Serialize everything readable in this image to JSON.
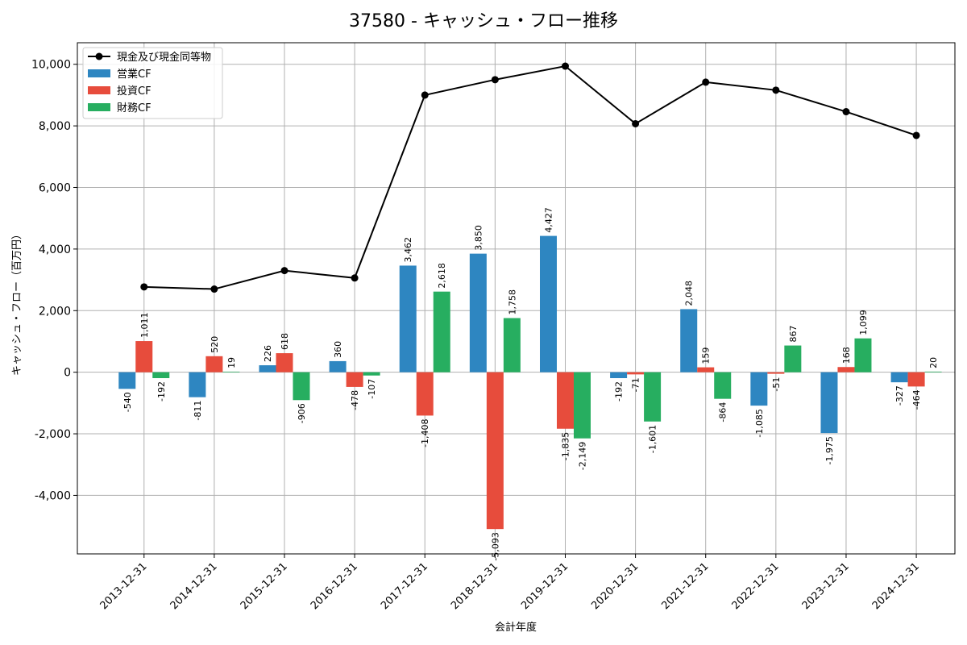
{
  "chart_data": {
    "type": "bar",
    "title": "37580 - キャッシュ・フロー推移",
    "xlabel": "会計年度",
    "ylabel": "キャッシュ・フロー（百万円）",
    "ylim": [
      -5900,
      10700
    ],
    "yticks": [
      -4000,
      -2000,
      0,
      2000,
      4000,
      6000,
      8000,
      10000
    ],
    "ytick_labels": [
      "-4,000",
      "-2,000",
      "0",
      "2,000",
      "4,000",
      "6,000",
      "8,000",
      "10,000"
    ],
    "grid": true,
    "legend_position": "top-left",
    "categories": [
      "2013-12-31",
      "2014-12-31",
      "2015-12-31",
      "2016-12-31",
      "2017-12-31",
      "2018-12-31",
      "2019-12-31",
      "2020-12-31",
      "2021-12-31",
      "2022-12-31",
      "2023-12-31",
      "2024-12-31"
    ],
    "series": [
      {
        "name": "営業CF",
        "kind": "bar",
        "color": "#2e86c1",
        "values": [
          -540,
          -811,
          226,
          360,
          3462,
          3850,
          4427,
          -192,
          2048,
          -1085,
          -1975,
          -327
        ],
        "labels": [
          "-540",
          "-811",
          "226",
          "360",
          "3,462",
          "3,850",
          "4,427",
          "-192",
          "2,048",
          "-1,085",
          "-1,975",
          "-327"
        ]
      },
      {
        "name": "投資CF",
        "kind": "bar",
        "color": "#e74c3c",
        "values": [
          1011,
          520,
          618,
          -478,
          -1408,
          -5093,
          -1835,
          -71,
          159,
          -51,
          168,
          -464
        ],
        "labels": [
          "1,011",
          "520",
          "618",
          "-478",
          "-1,408",
          "-5,093",
          "-1,835",
          "-71",
          "159",
          "-51",
          "168",
          "-464"
        ]
      },
      {
        "name": "財務CF",
        "kind": "bar",
        "color": "#27ae60",
        "values": [
          -192,
          19,
          -906,
          -107,
          2618,
          1758,
          -2149,
          -1601,
          -864,
          867,
          1099,
          20
        ],
        "labels": [
          "-192",
          "19",
          "-906",
          "-107",
          "2,618",
          "1,758",
          "-2,149",
          "-1,601",
          "-864",
          "867",
          "1,099",
          "20"
        ]
      },
      {
        "name": "現金及び現金同等物",
        "kind": "line",
        "color": "#000000",
        "values": [
          2770,
          2700,
          3300,
          3060,
          9000,
          9500,
          9940,
          8070,
          9420,
          9160,
          8460,
          7690
        ]
      }
    ]
  }
}
